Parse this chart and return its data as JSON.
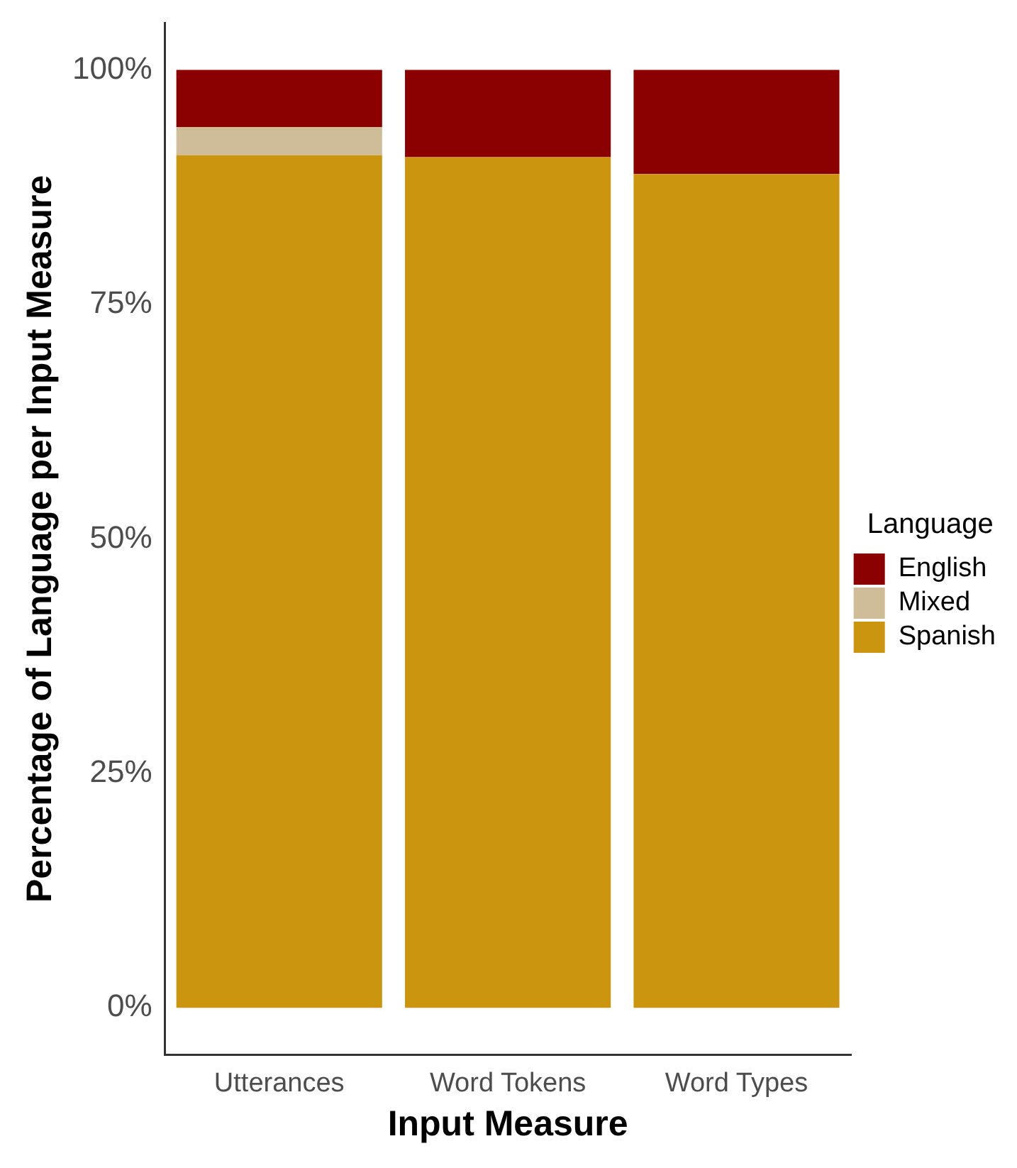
{
  "chart_data": {
    "type": "bar",
    "stacked": true,
    "xlabel": "Input Measure",
    "ylabel": "Percentage of Language per Input Measure",
    "legend_title": "Language",
    "legend": "right",
    "categories": [
      "Utterances",
      "Word Tokens",
      "Word Types"
    ],
    "series": [
      {
        "name": "Spanish",
        "color": "#cc950f",
        "values": [
          90.9,
          90.7,
          88.9
        ]
      },
      {
        "name": "Mixed",
        "color": "#cfbc98",
        "values": [
          3.0,
          0,
          0
        ]
      },
      {
        "name": "English",
        "color": "#8b0000",
        "values": [
          6.1,
          9.3,
          11.1
        ]
      }
    ],
    "ylim": [
      -5,
      105
    ],
    "yticks": [
      {
        "value": 0,
        "label": "0%"
      },
      {
        "value": 25,
        "label": "25%"
      },
      {
        "value": 50,
        "label": "50%"
      },
      {
        "value": 75,
        "label": "75%"
      },
      {
        "value": 100,
        "label": "100%"
      }
    ],
    "grid": false
  }
}
